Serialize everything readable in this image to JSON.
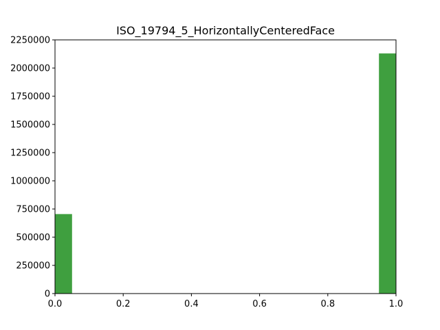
{
  "chart_data": {
    "type": "bar",
    "title": "ISO_19794_5_HorizontallyCenteredFace",
    "xlabel": "",
    "ylabel": "",
    "xlim": [
      0.0,
      1.0
    ],
    "ylim": [
      0,
      2250000
    ],
    "grid": false,
    "bar_color": "#3f9f3f",
    "bins": [
      {
        "x0": 0.0,
        "x1": 0.05,
        "value": 705000
      },
      {
        "x0": 0.95,
        "x1": 1.0,
        "value": 2130000
      }
    ],
    "x_ticks": [
      {
        "value": 0.0,
        "label": "0.0"
      },
      {
        "value": 0.2,
        "label": "0.2"
      },
      {
        "value": 0.4,
        "label": "0.4"
      },
      {
        "value": 0.6,
        "label": "0.6"
      },
      {
        "value": 0.8,
        "label": "0.8"
      },
      {
        "value": 1.0,
        "label": "1.0"
      }
    ],
    "y_ticks": [
      {
        "value": 0,
        "label": "0"
      },
      {
        "value": 250000,
        "label": "250000"
      },
      {
        "value": 500000,
        "label": "500000"
      },
      {
        "value": 750000,
        "label": "750000"
      },
      {
        "value": 1000000,
        "label": "1000000"
      },
      {
        "value": 1250000,
        "label": "1250000"
      },
      {
        "value": 1500000,
        "label": "1500000"
      },
      {
        "value": 1750000,
        "label": "1750000"
      },
      {
        "value": 2000000,
        "label": "2000000"
      },
      {
        "value": 2250000,
        "label": "2250000"
      }
    ]
  }
}
